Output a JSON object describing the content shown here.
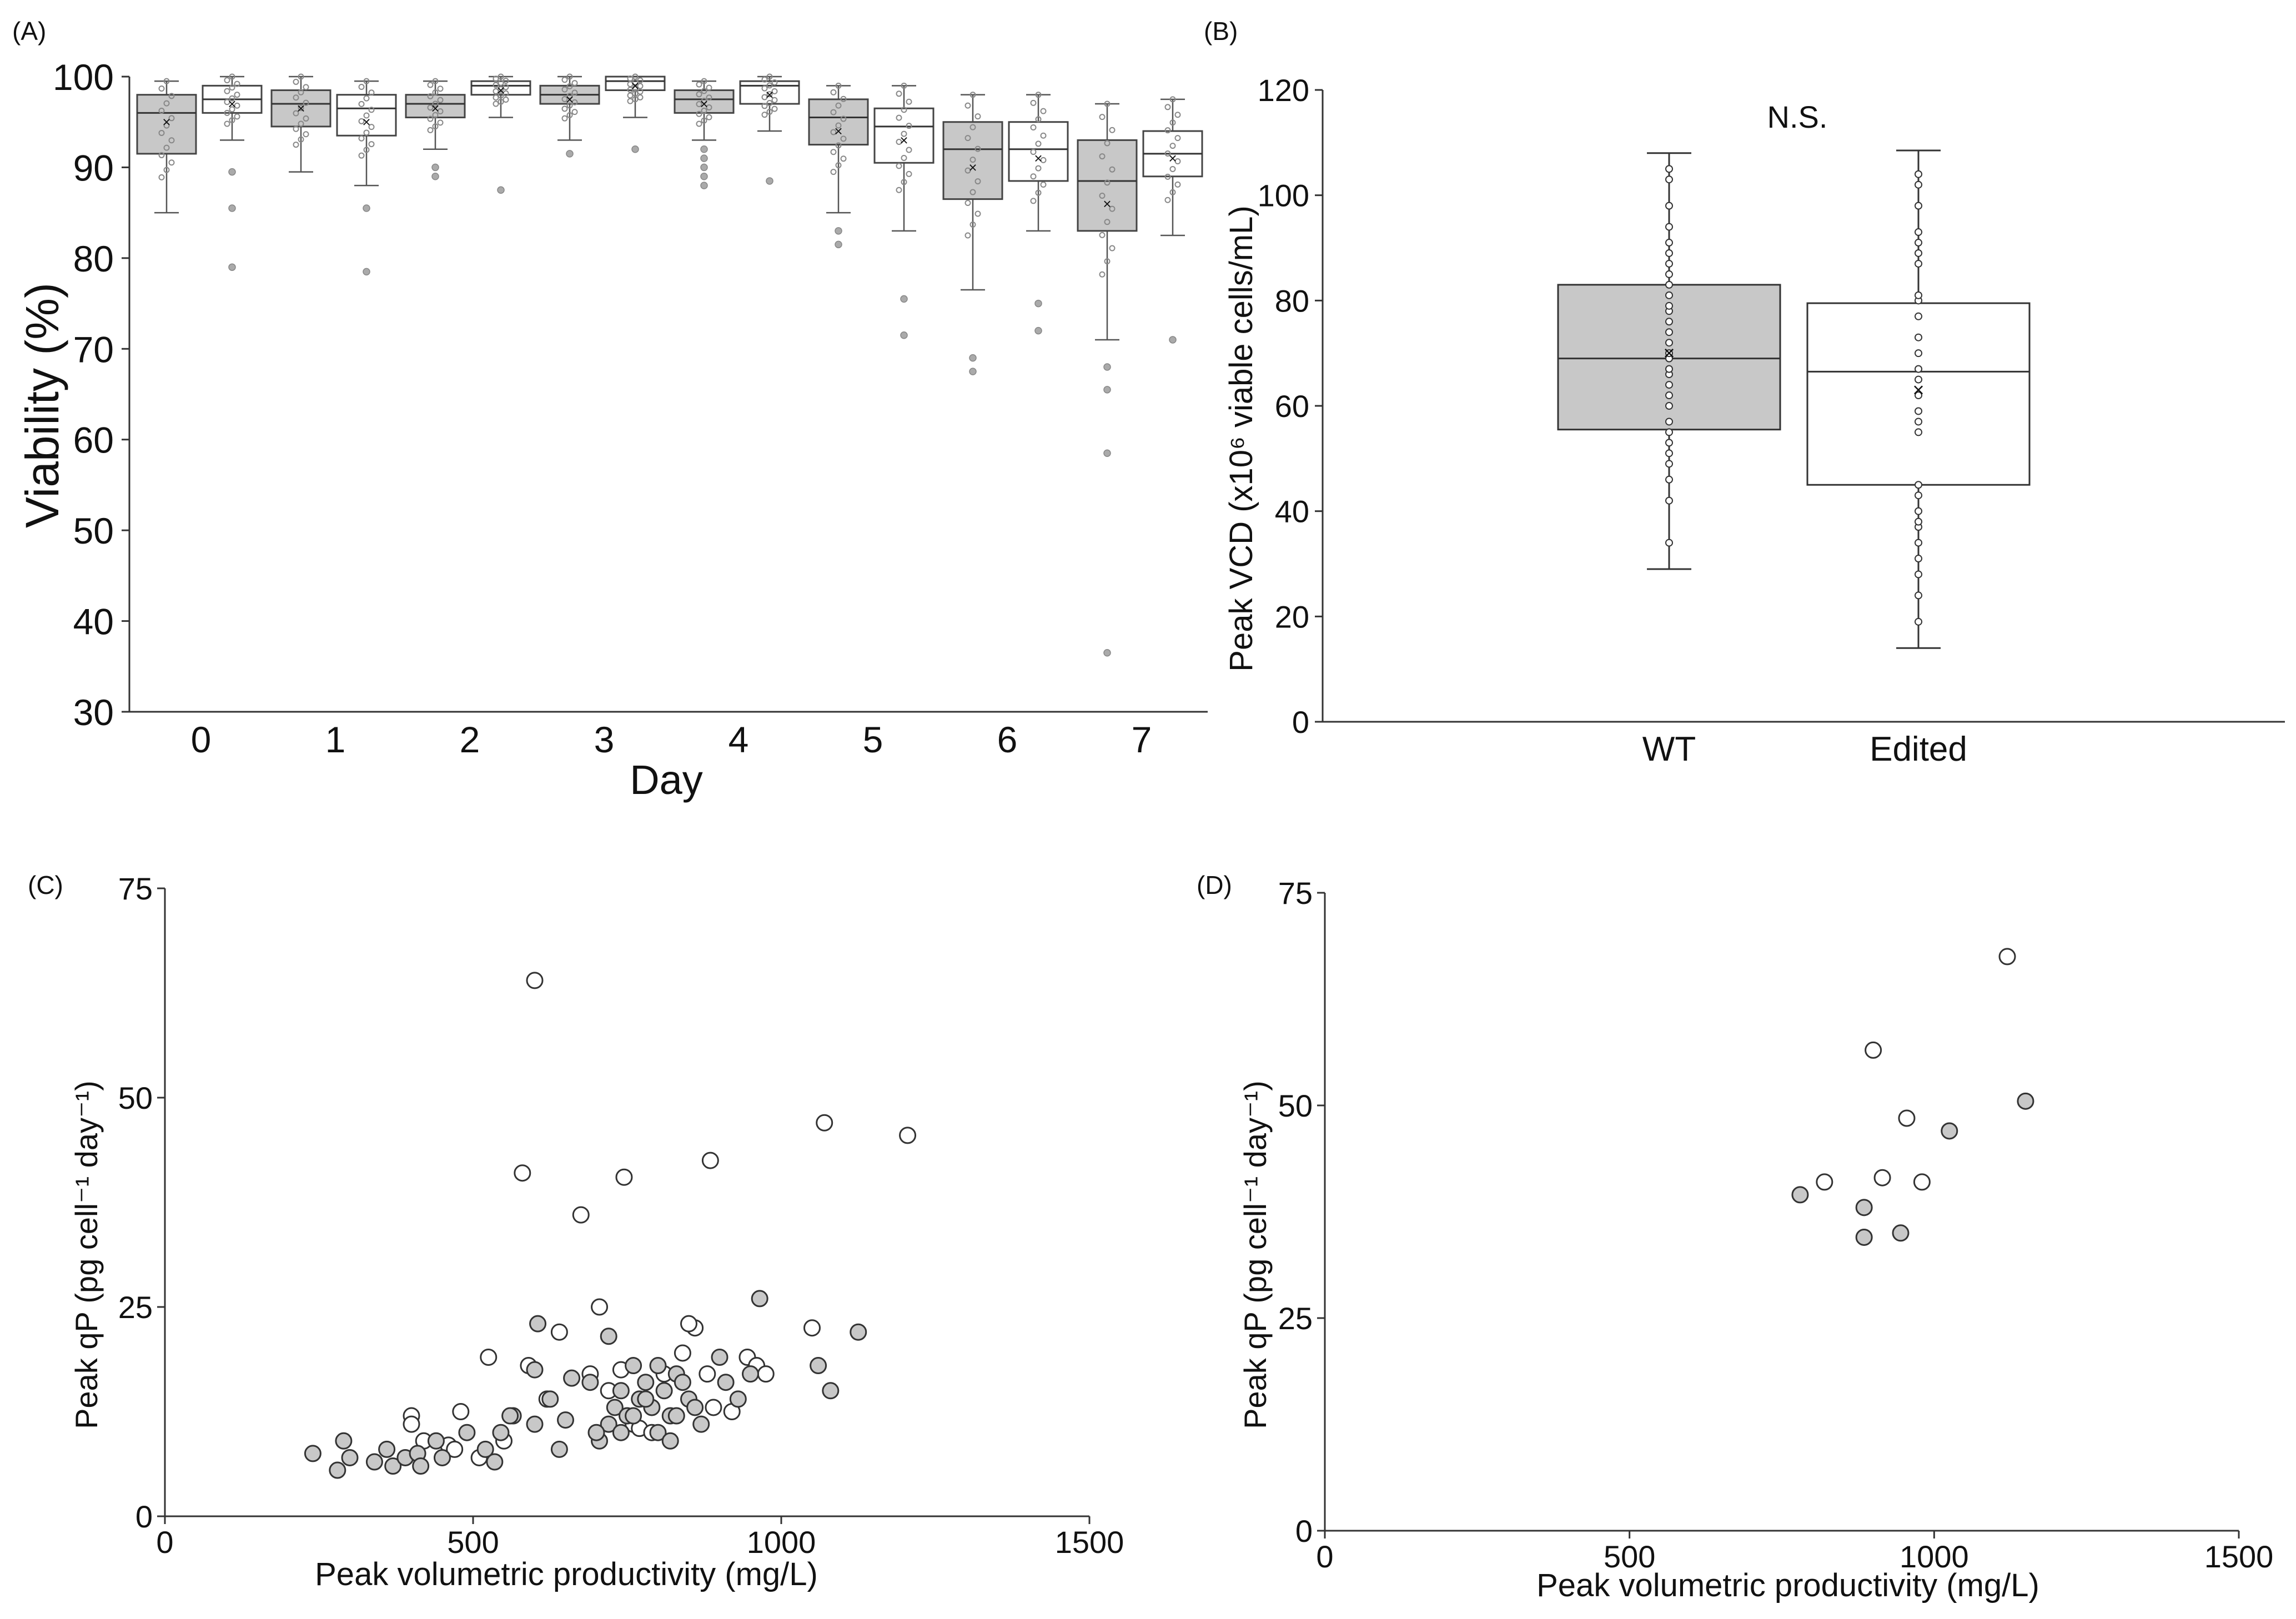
{
  "chart_data": [
    {
      "panel": "(A)",
      "type": "box",
      "ylabel": "Viability (%)",
      "xlabel": "Day",
      "ylim": [
        30,
        100
      ],
      "yticks": [
        30,
        40,
        50,
        60,
        70,
        80,
        90,
        100
      ],
      "categories": [
        "0",
        "1",
        "2",
        "3",
        "4",
        "5",
        "6",
        "7"
      ],
      "series_colors": {
        "wt": "#c8c8c8",
        "edited": "#ffffff"
      },
      "boxes": [
        {
          "day": "0",
          "group": "wt",
          "min": 85,
          "q1": 91.5,
          "median": 96,
          "q3": 98,
          "max": 99.5,
          "mean": 95,
          "outliers": []
        },
        {
          "day": "0",
          "group": "edited",
          "min": 93,
          "q1": 96,
          "median": 97.5,
          "q3": 99,
          "max": 100,
          "mean": 97,
          "outliers": [
            89.5,
            85.5,
            79
          ]
        },
        {
          "day": "1",
          "group": "wt",
          "min": 89.5,
          "q1": 94.5,
          "median": 97,
          "q3": 98.5,
          "max": 100,
          "mean": 96.5,
          "outliers": []
        },
        {
          "day": "1",
          "group": "edited",
          "min": 88,
          "q1": 93.5,
          "median": 96.5,
          "q3": 98,
          "max": 99.5,
          "mean": 95,
          "outliers": [
            85.5,
            78.5
          ]
        },
        {
          "day": "2",
          "group": "wt",
          "min": 92,
          "q1": 95.5,
          "median": 97,
          "q3": 98,
          "max": 99.5,
          "mean": 96.5,
          "outliers": [
            90,
            89
          ]
        },
        {
          "day": "2",
          "group": "edited",
          "min": 95.5,
          "q1": 98,
          "median": 99,
          "q3": 99.5,
          "max": 100,
          "mean": 98.5,
          "outliers": [
            87.5
          ]
        },
        {
          "day": "3",
          "group": "wt",
          "min": 93,
          "q1": 97,
          "median": 98,
          "q3": 99,
          "max": 100,
          "mean": 97.5,
          "outliers": [
            91.5
          ]
        },
        {
          "day": "3",
          "group": "edited",
          "min": 95.5,
          "q1": 98.5,
          "median": 99.5,
          "q3": 100,
          "max": 100,
          "mean": 99,
          "outliers": [
            92
          ]
        },
        {
          "day": "4",
          "group": "wt",
          "min": 93,
          "q1": 96,
          "median": 97.5,
          "q3": 98.5,
          "max": 99.5,
          "mean": 97,
          "outliers": [
            92,
            91,
            90,
            89,
            88
          ]
        },
        {
          "day": "4",
          "group": "edited",
          "min": 94,
          "q1": 97,
          "median": 99,
          "q3": 99.5,
          "max": 100,
          "mean": 98,
          "outliers": [
            88.5
          ]
        },
        {
          "day": "5",
          "group": "wt",
          "min": 85,
          "q1": 92.5,
          "median": 95.5,
          "q3": 97.5,
          "max": 99,
          "mean": 94,
          "outliers": [
            83,
            81.5
          ]
        },
        {
          "day": "5",
          "group": "edited",
          "min": 83,
          "q1": 90.5,
          "median": 94.5,
          "q3": 96.5,
          "max": 99,
          "mean": 93,
          "outliers": [
            75.5,
            71.5
          ]
        },
        {
          "day": "6",
          "group": "wt",
          "min": 76.5,
          "q1": 86.5,
          "median": 92,
          "q3": 95,
          "max": 98,
          "mean": 90,
          "outliers": [
            69,
            67.5
          ]
        },
        {
          "day": "6",
          "group": "edited",
          "min": 83,
          "q1": 88.5,
          "median": 92,
          "q3": 95,
          "max": 98,
          "mean": 91,
          "outliers": [
            75,
            72
          ]
        },
        {
          "day": "7",
          "group": "wt",
          "min": 71,
          "q1": 83,
          "median": 88.5,
          "q3": 93,
          "max": 97,
          "mean": 86,
          "outliers": [
            68,
            65.5,
            58.5,
            36.5
          ]
        },
        {
          "day": "7",
          "group": "edited",
          "min": 82.5,
          "q1": 89,
          "median": 91.5,
          "q3": 94,
          "max": 97.5,
          "mean": 91,
          "outliers": [
            71
          ]
        }
      ]
    },
    {
      "panel": "(B)",
      "type": "box",
      "ylabel": "Peak VCD (x10⁶ viable cells/mL)",
      "annotation": "N.S.",
      "ylim": [
        0,
        120
      ],
      "yticks": [
        0,
        20,
        40,
        60,
        80,
        100,
        120
      ],
      "categories": [
        "WT",
        "Edited"
      ],
      "boxes": [
        {
          "group": "WT",
          "min": 29,
          "q1": 55.5,
          "median": 69,
          "q3": 83,
          "max": 108,
          "mean": 70,
          "fill": "#c8c8c8",
          "points": [
            34,
            42,
            46,
            49,
            51,
            53,
            55,
            57,
            60,
            62,
            64,
            66,
            67,
            69,
            70,
            72,
            74,
            76,
            78,
            79,
            81,
            83,
            85,
            87,
            89,
            91,
            94,
            98,
            103,
            105
          ]
        },
        {
          "group": "Edited",
          "min": 14,
          "q1": 45,
          "median": 66.5,
          "q3": 79.5,
          "max": 108.5,
          "mean": 63,
          "fill": "#ffffff",
          "points": [
            19,
            24,
            28,
            31,
            34,
            37,
            38,
            40,
            43,
            45,
            55,
            57,
            59,
            62,
            65,
            67,
            70,
            73,
            77,
            80,
            81,
            87,
            89,
            91,
            93,
            98,
            102,
            104
          ]
        }
      ]
    },
    {
      "panel": "(C)",
      "type": "scatter",
      "xlabel": "Peak volumetric productivity (mg/L)",
      "ylabel": "Peak qP (pg cell⁻¹ day⁻¹)",
      "xlim": [
        0,
        1500
      ],
      "ylim": [
        0,
        75
      ],
      "xticks": [
        0,
        500,
        1000,
        1500
      ],
      "yticks": [
        0,
        25,
        50,
        75
      ],
      "series": [
        {
          "fill": "#ffffff",
          "points": [
            [
              600,
              64
            ],
            [
              1070,
              47
            ],
            [
              1205,
              45.5
            ],
            [
              580,
              41
            ],
            [
              745,
              40.5
            ],
            [
              885,
              42.5
            ],
            [
              675,
              36
            ],
            [
              705,
              25
            ],
            [
              860,
              22.5
            ],
            [
              1050,
              22.5
            ],
            [
              640,
              22
            ],
            [
              525,
              19
            ],
            [
              945,
              19
            ],
            [
              400,
              12
            ],
            [
              480,
              12.5
            ],
            [
              420,
              9
            ],
            [
              460,
              8.5
            ],
            [
              590,
              18
            ],
            [
              620,
              14
            ],
            [
              690,
              17
            ],
            [
              720,
              15
            ],
            [
              760,
              11
            ],
            [
              770,
              10.5
            ],
            [
              790,
              10
            ],
            [
              810,
              17
            ],
            [
              840,
              19.5
            ],
            [
              850,
              23
            ],
            [
              880,
              17
            ],
            [
              890,
              13
            ],
            [
              920,
              12.5
            ],
            [
              960,
              18
            ],
            [
              975,
              17
            ],
            [
              470,
              8
            ],
            [
              510,
              7
            ],
            [
              550,
              9
            ],
            [
              740,
              17.5
            ],
            [
              400,
              11
            ]
          ]
        },
        {
          "fill": "#c8c8c8",
          "points": [
            [
              240,
              7.5
            ],
            [
              280,
              5.5
            ],
            [
              290,
              9
            ],
            [
              300,
              7
            ],
            [
              340,
              6.5
            ],
            [
              360,
              8
            ],
            [
              370,
              6
            ],
            [
              390,
              7
            ],
            [
              410,
              7.5
            ],
            [
              415,
              6
            ],
            [
              440,
              9
            ],
            [
              450,
              7
            ],
            [
              490,
              10
            ],
            [
              520,
              8
            ],
            [
              535,
              6.5
            ],
            [
              545,
              10
            ],
            [
              565,
              12
            ],
            [
              600,
              17.5
            ],
            [
              605,
              23
            ],
            [
              625,
              14
            ],
            [
              640,
              8
            ],
            [
              660,
              16.5
            ],
            [
              690,
              16
            ],
            [
              705,
              9
            ],
            [
              720,
              11
            ],
            [
              730,
              13
            ],
            [
              740,
              15
            ],
            [
              750,
              12
            ],
            [
              760,
              18
            ],
            [
              770,
              14
            ],
            [
              780,
              16
            ],
            [
              790,
              13
            ],
            [
              800,
              18
            ],
            [
              810,
              15
            ],
            [
              820,
              12
            ],
            [
              830,
              17
            ],
            [
              840,
              16
            ],
            [
              850,
              14
            ],
            [
              860,
              13
            ],
            [
              870,
              11
            ],
            [
              900,
              19
            ],
            [
              910,
              16
            ],
            [
              930,
              14
            ],
            [
              950,
              17
            ],
            [
              965,
              26
            ],
            [
              1060,
              18
            ],
            [
              1080,
              15
            ],
            [
              1125,
              22
            ],
            [
              720,
              21.5
            ],
            [
              740,
              10
            ],
            [
              800,
              10
            ],
            [
              820,
              9
            ],
            [
              560,
              12
            ],
            [
              600,
              11
            ],
            [
              650,
              11.5
            ],
            [
              700,
              10
            ],
            [
              830,
              12
            ],
            [
              760,
              12
            ],
            [
              780,
              14
            ]
          ]
        }
      ]
    },
    {
      "panel": "(D)",
      "type": "scatter",
      "xlabel": "Peak volumetric productivity (mg/L)",
      "ylabel": "Peak qP (pg cell⁻¹ day⁻¹)",
      "xlim": [
        0,
        1500
      ],
      "ylim": [
        0,
        75
      ],
      "xticks": [
        0,
        500,
        1000,
        1500
      ],
      "yticks": [
        0,
        25,
        50,
        75
      ],
      "series": [
        {
          "fill": "#ffffff",
          "points": [
            [
              1120,
              67.5
            ],
            [
              900,
              56.5
            ],
            [
              955,
              48.5
            ],
            [
              820,
              41
            ],
            [
              915,
              41.5
            ],
            [
              980,
              41
            ]
          ]
        },
        {
          "fill": "#c8c8c8",
          "points": [
            [
              780,
              39.5
            ],
            [
              885,
              38
            ],
            [
              1025,
              47
            ],
            [
              1150,
              50.5
            ],
            [
              885,
              34.5
            ],
            [
              945,
              35
            ]
          ]
        }
      ]
    }
  ],
  "labels": {
    "panelA": "(A)",
    "panelB": "(B)",
    "panelC": "(C)",
    "panelD": "(D)",
    "a_ylabel": "Viability (%)",
    "a_xlabel": "Day",
    "b_ylabel": "Peak VCD (x10⁶ viable cells/mL)",
    "b_ns": "N.S.",
    "b_wt": "WT",
    "b_edited": "Edited",
    "c_xlabel": "Peak volumetric productivity (mg/L)",
    "c_ylabel": "Peak qP (pg cell⁻¹ day⁻¹)",
    "d_xlabel": "Peak volumetric productivity (mg/L)",
    "d_ylabel": "Peak qP (pg cell⁻¹ day⁻¹)"
  }
}
